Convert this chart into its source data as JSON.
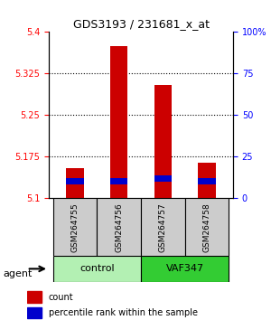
{
  "title": "GDS3193 / 231681_x_at",
  "samples": [
    "GSM264755",
    "GSM264756",
    "GSM264757",
    "GSM264758"
  ],
  "groups": [
    "control",
    "control",
    "VAF347",
    "VAF347"
  ],
  "group_colors": {
    "control": "#90EE90",
    "VAF347": "#00CC00"
  },
  "count_values": [
    5.155,
    5.375,
    5.305,
    5.165
  ],
  "percentile_values": [
    5.125,
    5.125,
    5.13,
    5.125
  ],
  "ylim_left": [
    5.1,
    5.4
  ],
  "ylim_right": [
    0,
    100
  ],
  "yticks_left": [
    5.1,
    5.175,
    5.25,
    5.325,
    5.4
  ],
  "yticks_right": [
    0,
    25,
    50,
    75,
    100
  ],
  "ytick_labels_right": [
    "0",
    "25",
    "50",
    "75",
    "100%"
  ],
  "bar_bottom": 5.1,
  "bar_width": 0.4,
  "count_color": "#CC0000",
  "percentile_color": "#0000CC",
  "grid_color": "#000000",
  "background_color": "#ffffff",
  "sample_bg_color": "#cccccc",
  "legend_count_label": "count",
  "legend_percentile_label": "percentile rank within the sample"
}
